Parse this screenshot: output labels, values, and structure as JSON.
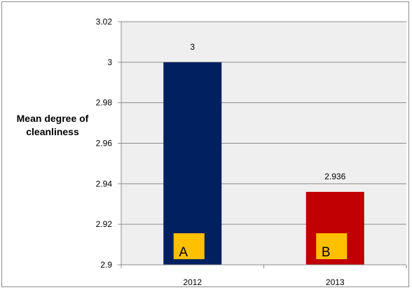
{
  "chart_data": {
    "type": "bar",
    "title": "",
    "ylabel_lines": [
      "Mean degree of",
      "cleanliness"
    ],
    "xlabel": "",
    "categories": [
      "2012",
      "2013"
    ],
    "values": [
      3,
      2.936
    ],
    "data_labels": [
      "3",
      "2.936"
    ],
    "bar_badges": [
      "A",
      "B"
    ],
    "ylim": [
      2.9,
      3.02
    ],
    "yticks": [
      2.9,
      2.92,
      2.94,
      2.96,
      2.98,
      3,
      3.02
    ],
    "ytick_labels": [
      "2.9",
      "2.92",
      "2.94",
      "2.96",
      "2.98",
      "3",
      "3.02"
    ],
    "grid": true,
    "legend": "none",
    "colors": {
      "bars": [
        "#002060",
        "#c00000"
      ],
      "badge": "#ffc000",
      "plot_background": "#efefef",
      "gridline": "#8c8c8c"
    }
  }
}
